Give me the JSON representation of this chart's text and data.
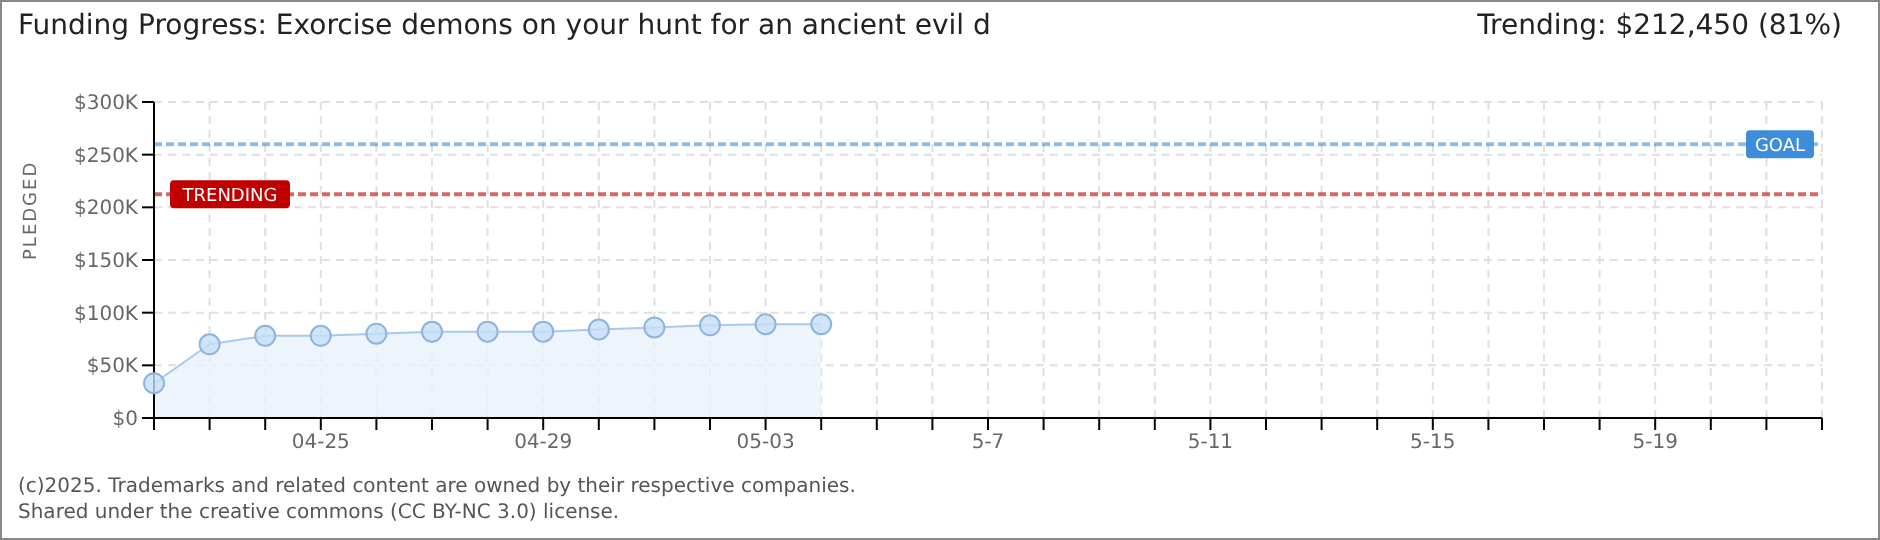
{
  "chart_data": {
    "type": "area",
    "title": "Funding Progress: Exorcise demons on your hunt for an ancient evil d",
    "subtitle": "Trending:  $212,450 (81%)",
    "ylabel": "PLEDGED",
    "categories": [
      null,
      null,
      null,
      "04-25",
      null,
      null,
      null,
      "04-29",
      null,
      null,
      null,
      "05-03",
      null,
      null,
      null,
      "5-7",
      null,
      null,
      null,
      "5-11",
      null,
      null,
      null,
      "5-15",
      null,
      null,
      null,
      "5-19",
      null,
      null,
      null
    ],
    "series": [
      {
        "color": "#a9c9ec",
        "values": [
          33000,
          70000,
          78000,
          78000,
          80000,
          82000,
          82000,
          82000,
          84000,
          86000,
          88000,
          89000,
          89000,
          null,
          null,
          null,
          null,
          null,
          null,
          null,
          null,
          null,
          null,
          null,
          null,
          null,
          null,
          null,
          null,
          null,
          null
        ]
      }
    ],
    "marker": "circle",
    "ylim": [
      0,
      300000
    ],
    "yticks": [
      {
        "value": 0,
        "label": "$0"
      },
      {
        "value": 50000,
        "label": "$50K"
      },
      {
        "value": 100000,
        "label": "$100K"
      },
      {
        "value": 150000,
        "label": "$150K"
      },
      {
        "value": 200000,
        "label": "$200K"
      },
      {
        "value": 250000,
        "label": "$250K"
      },
      {
        "value": 300000,
        "label": "$300K"
      }
    ],
    "ref_lines": [
      {
        "axis": "y",
        "value": 260000,
        "label": "GOAL",
        "color": "#3d8ddb",
        "line_style": "dashed"
      },
      {
        "axis": "y",
        "value": 212450,
        "label": "TRENDING",
        "color": "#c00000",
        "line_style": "dashed"
      }
    ],
    "grid": true,
    "legend": false,
    "annotations": [
      "(c)2025. Trademarks and related content are owned by their respective companies.",
      "Shared under the creative commons (CC BY-NC 3.0) license."
    ]
  }
}
